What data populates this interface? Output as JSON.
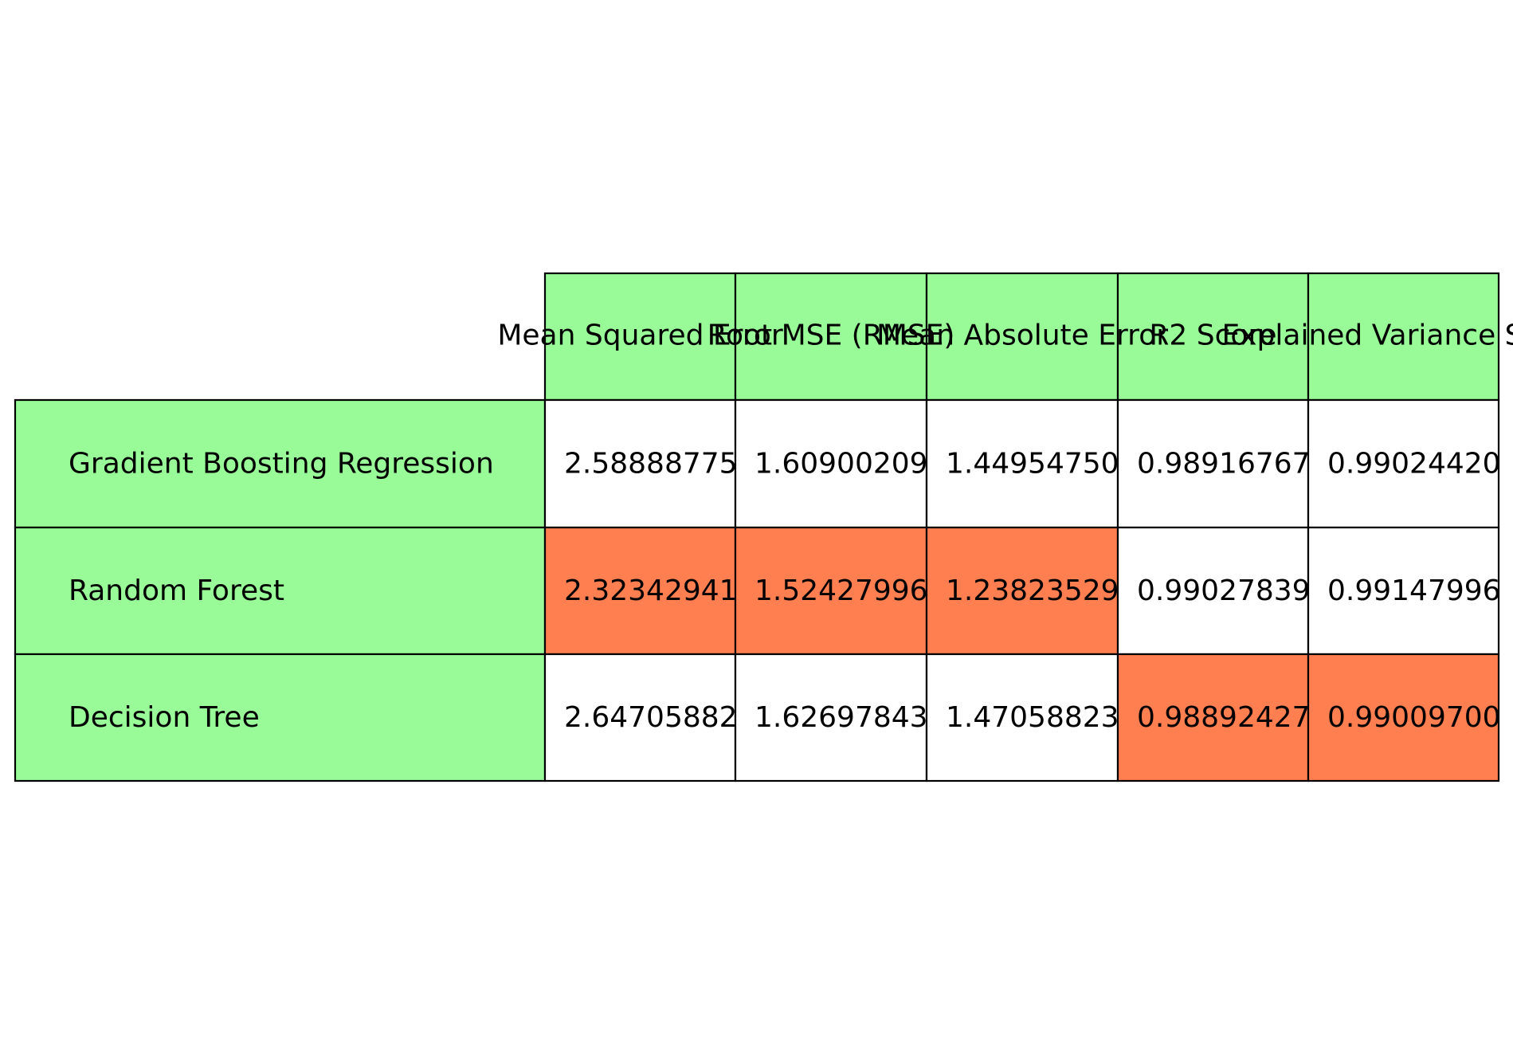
{
  "colors": {
    "header_bg": "#98fb98",
    "highlight_bg": "#ff7f50",
    "cell_bg": "#ffffff",
    "border": "#000000",
    "text": "#000000"
  },
  "chart_data": {
    "type": "table",
    "title": "",
    "columns": [
      "Mean Squared Error",
      "Root MSE (RMSE)",
      "Mean Absolute Error",
      "R2 Score",
      "Explained Variance Score"
    ],
    "rows": [
      {
        "label": "Gradient Boosting Regression",
        "values": [
          "2.58888775",
          "1.60900209",
          "1.44954750",
          "0.98916767",
          "0.99024420"
        ],
        "highlighted": [
          false,
          false,
          false,
          false,
          false
        ]
      },
      {
        "label": "Random Forest",
        "values": [
          "2.32342941",
          "1.52427996",
          "1.23823529",
          "0.99027839",
          "0.99147996"
        ],
        "highlighted": [
          true,
          true,
          true,
          false,
          false
        ]
      },
      {
        "label": "Decision Tree",
        "values": [
          "2.64705882",
          "1.62697843",
          "1.47058823",
          "0.98892427",
          "0.99009700"
        ],
        "highlighted": [
          false,
          false,
          false,
          true,
          true
        ]
      }
    ]
  }
}
